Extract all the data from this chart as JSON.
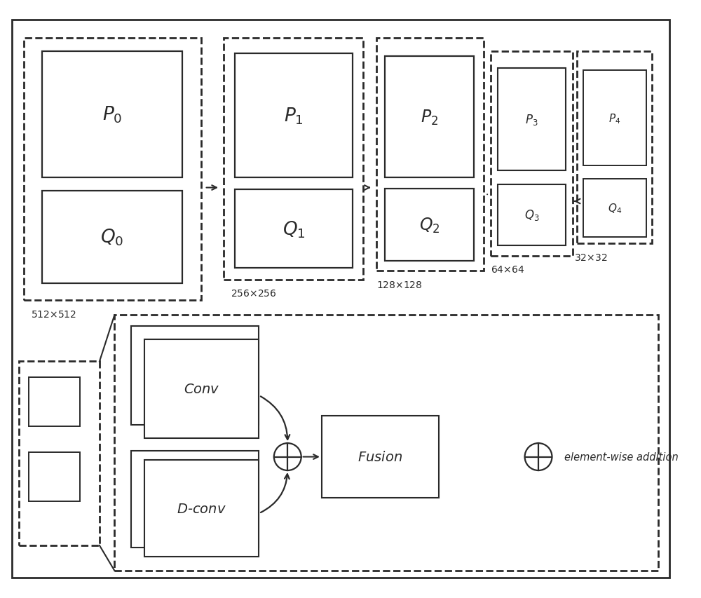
{
  "fig_width": 10.0,
  "fig_height": 8.54,
  "bg_color": "#ffffff",
  "line_color": "#2a2a2a",
  "xlim": [
    0,
    10
  ],
  "ylim": [
    0,
    8.54
  ]
}
